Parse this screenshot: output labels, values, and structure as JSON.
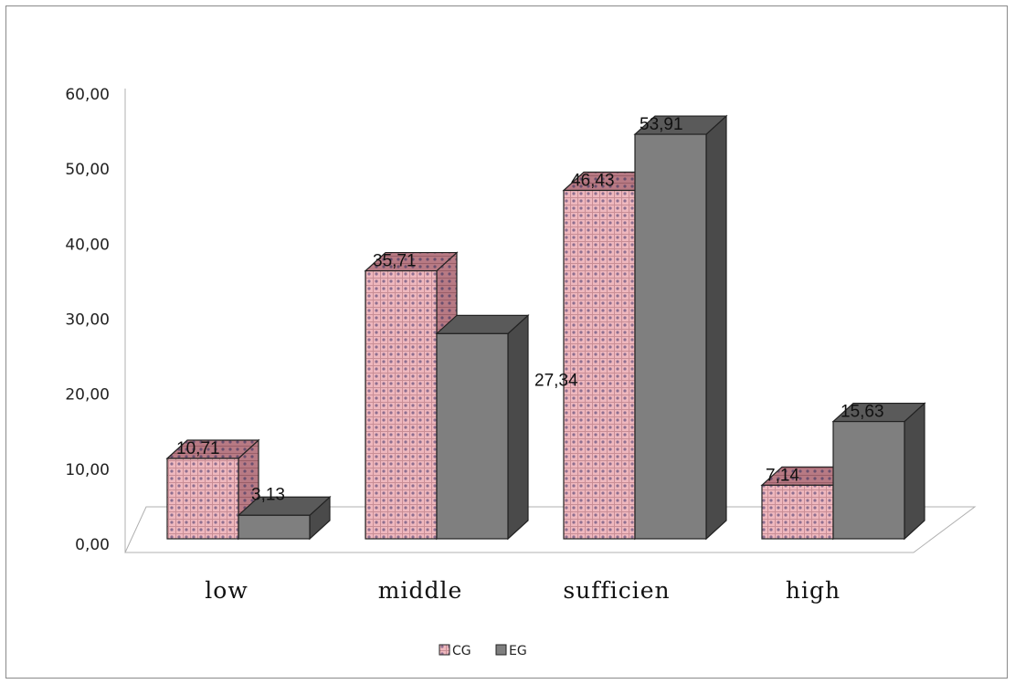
{
  "chart_data": {
    "type": "bar",
    "three_d": true,
    "categories": [
      "low",
      "middle",
      "sufficien",
      "high"
    ],
    "series": [
      {
        "name": "CG",
        "values": [
          10.71,
          35.71,
          46.43,
          7.14
        ],
        "labels": [
          "10,71",
          "35,71",
          "46,43",
          "7,14"
        ],
        "color": "#e8a6ae",
        "pattern": "dotted-grid"
      },
      {
        "name": "EG",
        "values": [
          3.13,
          27.34,
          53.91,
          15.63
        ],
        "labels": [
          "3,13",
          "27,34",
          "53,91",
          "15,63"
        ],
        "color": "#7f7f7f"
      }
    ],
    "ylim": [
      0,
      60
    ],
    "yticks": [
      "0,00",
      "10,00",
      "20,00",
      "30,00",
      "40,00",
      "50,00",
      "60,00"
    ],
    "legend_position": "bottom",
    "grid": false
  }
}
